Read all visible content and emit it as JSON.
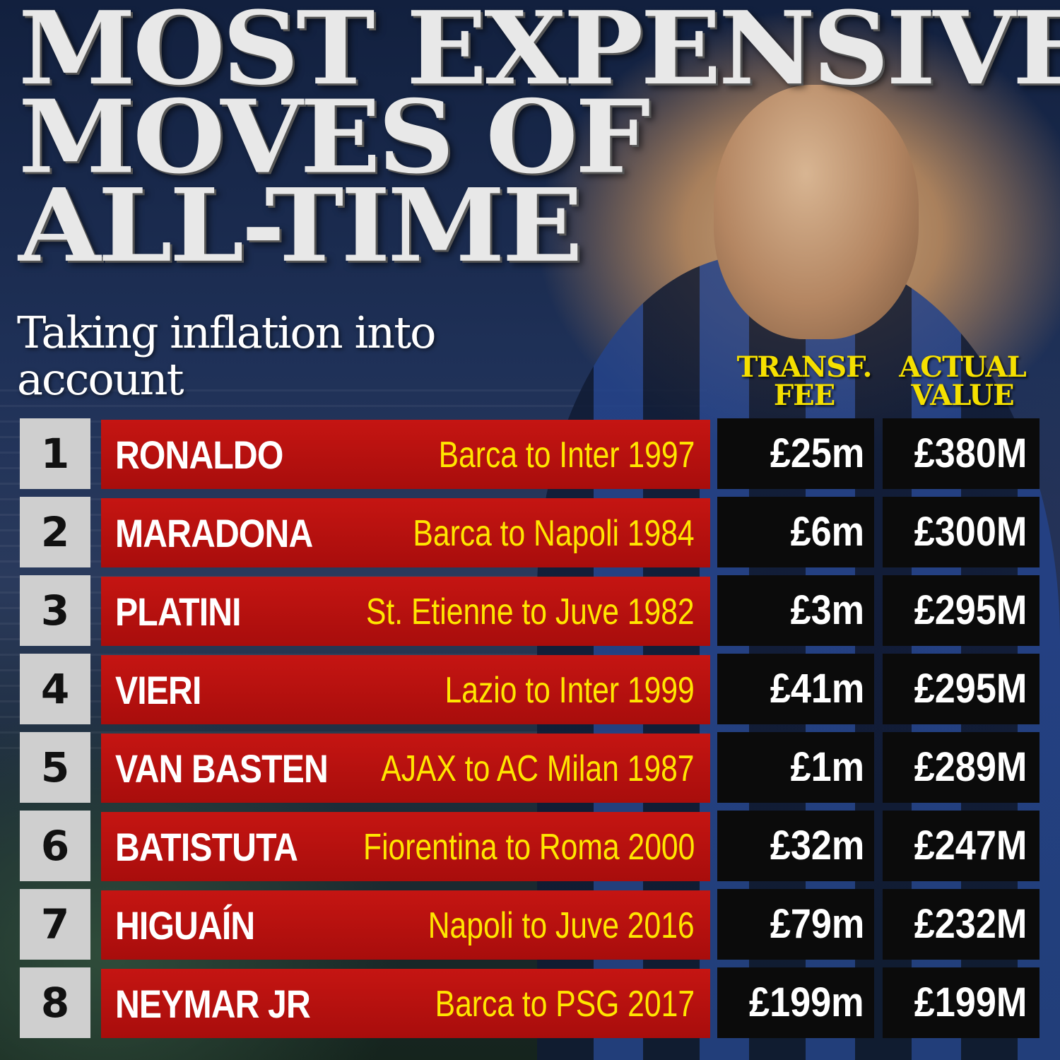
{
  "title": {
    "line1": "MOST EXPENSIVE",
    "line2": "MOVES OF",
    "line3": "ALL-TIME"
  },
  "subtitle": "Taking inflation into account",
  "columns": {
    "transfer_fee": "TRANSF. FEE",
    "actual_value": "ACTUAL VALUE"
  },
  "colors": {
    "title": "#e8e8e8",
    "bar": "#c51512",
    "move_text": "#ffe600",
    "header_text": "#f5e000",
    "rank_box": "#cfcfcf",
    "value_box": "#0b0b0b"
  },
  "rows": [
    {
      "rank": "1",
      "name": "RONALDO",
      "move": "Barca to Inter 1997",
      "fee": "£25m",
      "value": "£380M"
    },
    {
      "rank": "2",
      "name": "MARADONA",
      "move": "Barca to Napoli 1984",
      "fee": "£6m",
      "value": "£300M"
    },
    {
      "rank": "3",
      "name": "PLATINI",
      "move": "St. Etienne to Juve 1982",
      "fee": "£3m",
      "value": "£295M"
    },
    {
      "rank": "4",
      "name": "VIERI",
      "move": "Lazio to Inter 1999",
      "fee": "£41m",
      "value": "£295M"
    },
    {
      "rank": "5",
      "name": "VAN BASTEN",
      "move": "AJAX to AC Milan 1987",
      "fee": "£1m",
      "value": "£289M"
    },
    {
      "rank": "6",
      "name": "BATISTUTA",
      "move": "Fiorentina to Roma 2000",
      "fee": "£32m",
      "value": "£247M"
    },
    {
      "rank": "7",
      "name": "HIGUAÍN",
      "move": "Napoli to Juve 2016",
      "fee": "£79m",
      "value": "£232M"
    },
    {
      "rank": "8",
      "name": "NEYMAR JR",
      "move": "Barca to PSG 2017",
      "fee": "£199m",
      "value": "£199M"
    }
  ]
}
